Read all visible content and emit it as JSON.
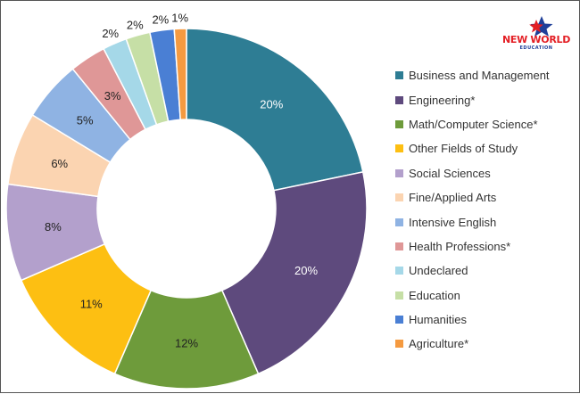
{
  "chart_data": {
    "type": "pie",
    "variant": "donut",
    "title": "",
    "legend_position": "right",
    "slices": [
      {
        "label": "Business and Management",
        "value": 20,
        "display": "20%",
        "color": "#2e7d94",
        "label_color": "#ffffff"
      },
      {
        "label": "Engineering*",
        "value": 20,
        "display": "20%",
        "color": "#5e4a7d",
        "label_color": "#ffffff"
      },
      {
        "label": "Math/Computer Science*",
        "value": 12,
        "display": "12%",
        "color": "#6e9b3b",
        "label_color": "#222222"
      },
      {
        "label": "Other Fields of Study",
        "value": 11,
        "display": "11%",
        "color": "#fdbf12",
        "label_color": "#222222"
      },
      {
        "label": "Social Sciences",
        "value": 8,
        "display": "8%",
        "color": "#b3a0cc",
        "label_color": "#222222"
      },
      {
        "label": "Fine/Applied Arts",
        "value": 6,
        "display": "6%",
        "color": "#fbd4b1",
        "label_color": "#222222"
      },
      {
        "label": "Intensive English",
        "value": 5,
        "display": "5%",
        "color": "#8fb3e3",
        "label_color": "#222222"
      },
      {
        "label": "Health Professions*",
        "value": 3,
        "display": "3%",
        "color": "#df9797",
        "label_color": "#222222"
      },
      {
        "label": "Undeclared",
        "value": 2,
        "display": "2%",
        "color": "#a5d8e8",
        "label_color": "#222222"
      },
      {
        "label": "Education",
        "value": 2,
        "display": "2%",
        "color": "#c6dfa6",
        "label_color": "#222222"
      },
      {
        "label": "Humanities",
        "value": 2,
        "display": "2%",
        "color": "#4a7fd4",
        "label_color": "#222222"
      },
      {
        "label": "Agriculture*",
        "value": 1,
        "display": "1%",
        "color": "#f59a40",
        "label_color": "#222222"
      }
    ]
  },
  "logo": {
    "text": "NEW WORLD",
    "subtext": "EDUCATION",
    "color": "#e31e24",
    "accent": "#1f3f99"
  }
}
